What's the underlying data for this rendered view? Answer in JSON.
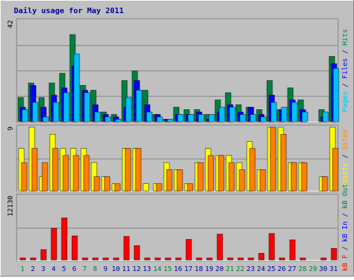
{
  "title": "Daily usage for May 2011",
  "colors": {
    "background": "#C0C0C0",
    "frame": "#808080",
    "title": "#0000A0",
    "hits": "#008040",
    "files": "#0000FF",
    "pages": "#00C0FF",
    "visits": "#FFFF00",
    "sites": "#FF8000",
    "kbytes": "#FF0000",
    "weekend": "#008040",
    "weekday": "#0000A0"
  },
  "chart_data": [
    {
      "type": "bar",
      "name": "hits-files-pages",
      "ymax_label": "42",
      "ymax": 42,
      "right_label": [
        {
          "text": "Pages",
          "color_key": "pages"
        },
        {
          "text": " / ",
          "color_key": "weekday"
        },
        {
          "text": "Files",
          "color_key": "files"
        },
        {
          "text": " / ",
          "color_key": "weekday"
        },
        {
          "text": "Hits",
          "color_key": "hits"
        }
      ],
      "categories": [
        "1",
        "2",
        "3",
        "4",
        "5",
        "6",
        "7",
        "8",
        "9",
        "10",
        "11",
        "12",
        "13",
        "14",
        "15",
        "16",
        "17",
        "18",
        "19",
        "20",
        "21",
        "22",
        "23",
        "24",
        "25",
        "26",
        "27",
        "28",
        "29",
        "30",
        "31"
      ],
      "series": [
        {
          "name": "Hits",
          "color_key": "hits",
          "values": [
            10,
            16,
            10,
            16,
            20,
            36,
            15,
            13,
            4,
            3,
            17,
            21,
            13,
            3,
            1,
            6,
            5,
            5,
            3,
            9,
            12,
            7,
            6,
            5,
            17,
            5,
            14,
            9,
            0,
            5,
            27
          ]
        },
        {
          "name": "Files",
          "color_key": "files",
          "values": [
            6,
            15,
            6,
            11,
            14,
            23,
            13,
            7,
            3,
            2,
            6,
            17,
            7,
            3,
            1,
            3,
            3,
            4,
            1,
            4,
            7,
            4,
            6,
            3,
            11,
            5,
            9,
            5,
            0,
            2,
            24
          ]
        },
        {
          "name": "Pages",
          "color_key": "pages",
          "values": [
            5,
            8,
            2,
            8,
            12,
            28,
            12,
            4,
            2,
            1,
            10,
            13,
            4,
            2,
            1,
            3,
            3,
            3,
            3,
            6,
            6,
            3,
            3,
            2,
            8,
            6,
            8,
            4,
            0,
            4,
            22
          ]
        }
      ]
    },
    {
      "type": "bar",
      "name": "visits-sites",
      "ymax_label": "9",
      "ymax": 9,
      "right_label": [
        {
          "text": "Visits",
          "color_key": "visits"
        },
        {
          "text": " / ",
          "color_key": "weekday"
        },
        {
          "text": "Sites",
          "color_key": "sites"
        }
      ],
      "categories": [
        "1",
        "2",
        "3",
        "4",
        "5",
        "6",
        "7",
        "8",
        "9",
        "10",
        "11",
        "12",
        "13",
        "14",
        "15",
        "16",
        "17",
        "18",
        "19",
        "20",
        "21",
        "22",
        "23",
        "24",
        "25",
        "26",
        "27",
        "28",
        "29",
        "30",
        "31"
      ],
      "series": [
        {
          "name": "Visits",
          "color_key": "visits",
          "values": [
            6,
            9,
            2,
            8,
            6,
            6,
            6,
            4,
            2,
            1,
            6,
            6,
            1,
            1,
            4,
            3,
            1,
            4,
            6,
            5,
            5,
            4,
            7,
            3,
            9,
            9,
            4,
            4,
            0,
            2,
            9
          ]
        },
        {
          "name": "Sites",
          "color_key": "sites",
          "values": [
            4,
            6,
            4,
            6,
            5,
            5,
            5,
            2,
            2,
            1,
            6,
            6,
            0,
            1,
            3,
            3,
            1,
            4,
            5,
            5,
            4,
            3,
            6,
            3,
            9,
            8,
            4,
            4,
            0,
            2,
            6
          ]
        }
      ]
    },
    {
      "type": "bar",
      "name": "kbytes",
      "ymax_label": "12130",
      "ymax": 12130,
      "right_label": [
        {
          "text": "kB F",
          "color_key": "kbytes"
        },
        {
          "text": " / ",
          "color_key": "weekday"
        },
        {
          "text": "kB In",
          "color_key": "files"
        },
        {
          "text": " / ",
          "color_key": "weekday"
        },
        {
          "text": "kB Out",
          "color_key": "hits"
        }
      ],
      "categories": [
        "1",
        "2",
        "3",
        "4",
        "5",
        "6",
        "7",
        "8",
        "9",
        "10",
        "11",
        "12",
        "13",
        "14",
        "15",
        "16",
        "17",
        "18",
        "19",
        "20",
        "21",
        "22",
        "23",
        "24",
        "25",
        "26",
        "27",
        "28",
        "29",
        "30",
        "31"
      ],
      "series": [
        {
          "name": "kB F",
          "color_key": "kbytes",
          "values": [
            110,
            330,
            1980,
            6060,
            8030,
            4600,
            220,
            80,
            60,
            60,
            4490,
            2750,
            60,
            60,
            60,
            60,
            3930,
            220,
            110,
            4930,
            170,
            60,
            60,
            1260,
            5040,
            390,
            3830,
            110,
            0,
            60,
            2210
          ]
        }
      ]
    }
  ],
  "days": [
    {
      "label": "1",
      "weekend": true
    },
    {
      "label": "2",
      "weekend": false
    },
    {
      "label": "3",
      "weekend": false
    },
    {
      "label": "4",
      "weekend": false
    },
    {
      "label": "5",
      "weekend": false
    },
    {
      "label": "6",
      "weekend": false
    },
    {
      "label": "7",
      "weekend": true
    },
    {
      "label": "8",
      "weekend": true
    },
    {
      "label": "9",
      "weekend": false
    },
    {
      "label": "10",
      "weekend": false
    },
    {
      "label": "11",
      "weekend": false
    },
    {
      "label": "12",
      "weekend": false
    },
    {
      "label": "13",
      "weekend": false
    },
    {
      "label": "14",
      "weekend": true
    },
    {
      "label": "15",
      "weekend": true
    },
    {
      "label": "16",
      "weekend": false
    },
    {
      "label": "17",
      "weekend": false
    },
    {
      "label": "18",
      "weekend": false
    },
    {
      "label": "19",
      "weekend": false
    },
    {
      "label": "20",
      "weekend": false
    },
    {
      "label": "21",
      "weekend": true
    },
    {
      "label": "22",
      "weekend": true
    },
    {
      "label": "23",
      "weekend": false
    },
    {
      "label": "24",
      "weekend": false
    },
    {
      "label": "25",
      "weekend": false
    },
    {
      "label": "26",
      "weekend": false
    },
    {
      "label": "27",
      "weekend": false
    },
    {
      "label": "28",
      "weekend": true
    },
    {
      "label": "29",
      "weekend": true
    },
    {
      "label": "30",
      "weekend": false
    },
    {
      "label": "31",
      "weekend": false
    }
  ]
}
